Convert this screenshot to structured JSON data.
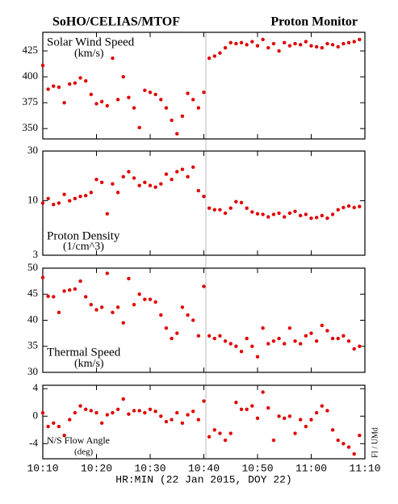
{
  "header": {
    "left": "SoHO/CELIAS/MTOF",
    "right": "Proton Monitor"
  },
  "side_note": "FI / UMd",
  "chart_data": [
    {
      "type": "scatter",
      "title": "Solar Wind Speed",
      "subtitle": "(km/s)",
      "color": "#e00000",
      "x": [
        10,
        11,
        12,
        13,
        14,
        15,
        16,
        17,
        18,
        19,
        20,
        21,
        22,
        23,
        24,
        25,
        26,
        27,
        28,
        29,
        30,
        31,
        32,
        33,
        34,
        35,
        36,
        37,
        38,
        39,
        40,
        41,
        42,
        43,
        44,
        45,
        46,
        47,
        48,
        49,
        50,
        51,
        52,
        53,
        54,
        55,
        56,
        57,
        58,
        59,
        60,
        61,
        62,
        63,
        64,
        65,
        66,
        67,
        68,
        69
      ],
      "values": [
        411,
        388,
        391,
        390,
        375,
        393,
        394,
        399,
        396,
        383,
        374,
        376,
        372,
        418,
        378,
        400,
        380,
        370,
        351,
        387,
        385,
        383,
        378,
        370,
        358,
        345,
        362,
        384,
        378,
        370,
        385,
        418,
        420,
        423,
        428,
        433,
        432,
        433,
        431,
        434,
        430,
        436,
        428,
        432,
        425,
        433,
        430,
        432,
        431,
        434,
        430,
        429,
        428,
        432,
        431,
        429,
        432,
        433,
        434,
        436
      ],
      "ylim": [
        340,
        443
      ],
      "yticks": [
        350,
        375,
        400,
        425
      ]
    },
    {
      "type": "scatter",
      "title": "Proton Density",
      "subtitle": "(1/cm^3)",
      "color": "#e00000",
      "log_scale": true,
      "x": [
        10,
        11,
        12,
        13,
        14,
        15,
        16,
        17,
        18,
        19,
        20,
        21,
        22,
        23,
        24,
        25,
        26,
        27,
        28,
        29,
        30,
        31,
        32,
        33,
        34,
        35,
        36,
        37,
        38,
        39,
        40,
        41,
        42,
        43,
        44,
        45,
        46,
        47,
        48,
        49,
        50,
        51,
        52,
        53,
        54,
        55,
        56,
        57,
        58,
        59,
        60,
        61,
        62,
        63,
        64,
        65,
        66,
        67,
        68,
        69
      ],
      "values": [
        9.5,
        10.5,
        9.2,
        9.5,
        11.5,
        10,
        10.5,
        11,
        11.2,
        12,
        16,
        15,
        7.5,
        14.5,
        12,
        17,
        19,
        16.5,
        14,
        15,
        14,
        13.5,
        14.5,
        18,
        16,
        19,
        20,
        17,
        21,
        12.5,
        11,
        8.5,
        8.2,
        8.2,
        7.6,
        8.5,
        9.8,
        9.6,
        8.5,
        7.8,
        7.5,
        7.4,
        7.0,
        7.4,
        7.6,
        7.0,
        7.6,
        7.9,
        7.2,
        7.4,
        6.8,
        6.9,
        7.2,
        6.8,
        7.4,
        8.2,
        8.6,
        8.9,
        8.6,
        8.8
      ],
      "ylim": [
        3,
        30
      ],
      "yticks": [
        3,
        10,
        30
      ]
    },
    {
      "type": "scatter",
      "title": "Thermal Speed",
      "subtitle": "(km/s)",
      "color": "#e00000",
      "x": [
        10,
        11,
        12,
        13,
        14,
        15,
        16,
        17,
        18,
        19,
        20,
        21,
        22,
        23,
        24,
        25,
        26,
        27,
        28,
        29,
        30,
        31,
        32,
        33,
        34,
        35,
        36,
        37,
        38,
        39,
        40,
        41,
        42,
        43,
        44,
        45,
        46,
        47,
        48,
        49,
        50,
        51,
        52,
        53,
        54,
        55,
        56,
        57,
        58,
        59,
        60,
        61,
        62,
        63,
        64,
        65,
        66,
        67,
        68,
        69
      ],
      "values": [
        48.2,
        44.6,
        44.5,
        41.5,
        45.6,
        45.8,
        46,
        47.5,
        44.5,
        43,
        42,
        42.5,
        49,
        41.5,
        42.5,
        39.5,
        48,
        43,
        45,
        44,
        44,
        43.5,
        41,
        38.5,
        36.5,
        37.5,
        42.5,
        41,
        40,
        37,
        46.5,
        37,
        36.5,
        37,
        36,
        35.5,
        35,
        34,
        36.5,
        35,
        33,
        38.5,
        35.5,
        36,
        36.5,
        35.5,
        38.5,
        36,
        35.5,
        37,
        37.5,
        36,
        39,
        38,
        36.5,
        36.5,
        37,
        36,
        34.5,
        35
      ],
      "ylim": [
        30,
        50
      ],
      "yticks": [
        30,
        35,
        40,
        45,
        50
      ]
    },
    {
      "type": "scatter",
      "title": "N/S Flow Angle",
      "subtitle": "(deg)",
      "color": "#e00000",
      "x": [
        10,
        11,
        12,
        13,
        14,
        15,
        16,
        17,
        18,
        19,
        20,
        21,
        22,
        23,
        24,
        25,
        26,
        27,
        28,
        29,
        30,
        31,
        32,
        33,
        34,
        35,
        36,
        37,
        38,
        39,
        40,
        41,
        42,
        43,
        44,
        45,
        46,
        47,
        48,
        49,
        50,
        51,
        52,
        53,
        54,
        55,
        56,
        57,
        58,
        59,
        60,
        61,
        62,
        63,
        64,
        65,
        66,
        67,
        68,
        69
      ],
      "values": [
        0.5,
        -1.5,
        -1,
        -1.5,
        -2.8,
        -0.5,
        0.5,
        1.5,
        1,
        0.8,
        0.5,
        -1,
        0.2,
        0.5,
        1,
        2.5,
        0.3,
        0.8,
        0.8,
        0.5,
        1,
        0.7,
        0,
        -0.8,
        -0.5,
        0.5,
        -1,
        0.2,
        0.7,
        -0.5,
        2.2,
        -3,
        -2,
        -2.5,
        -3.5,
        -2.5,
        2,
        1,
        1,
        1.5,
        -0.3,
        3.5,
        1.2,
        -3.5,
        0,
        -0.3,
        0,
        -2.5,
        -0.5,
        -1.5,
        -0.5,
        0.5,
        1.5,
        0.8,
        -2,
        -3.5,
        -4,
        -4.5,
        -5.5,
        -2.8
      ],
      "ylim": [
        -6.2,
        4.5
      ],
      "yticks": [
        -4,
        0,
        4
      ],
      "xlabel": "HR:MIN (22 Jan 2015, DOY 22)",
      "xlim": [
        10,
        70
      ],
      "xticks": [
        {
          "value": 10,
          "label": "10:10"
        },
        {
          "value": 20,
          "label": "10:20"
        },
        {
          "value": 30,
          "label": "10:30"
        },
        {
          "value": 40,
          "label": "10:40"
        },
        {
          "value": 50,
          "label": "10:50"
        },
        {
          "value": 60,
          "label": "11:00"
        },
        {
          "value": 70,
          "label": "11:10"
        }
      ]
    }
  ]
}
